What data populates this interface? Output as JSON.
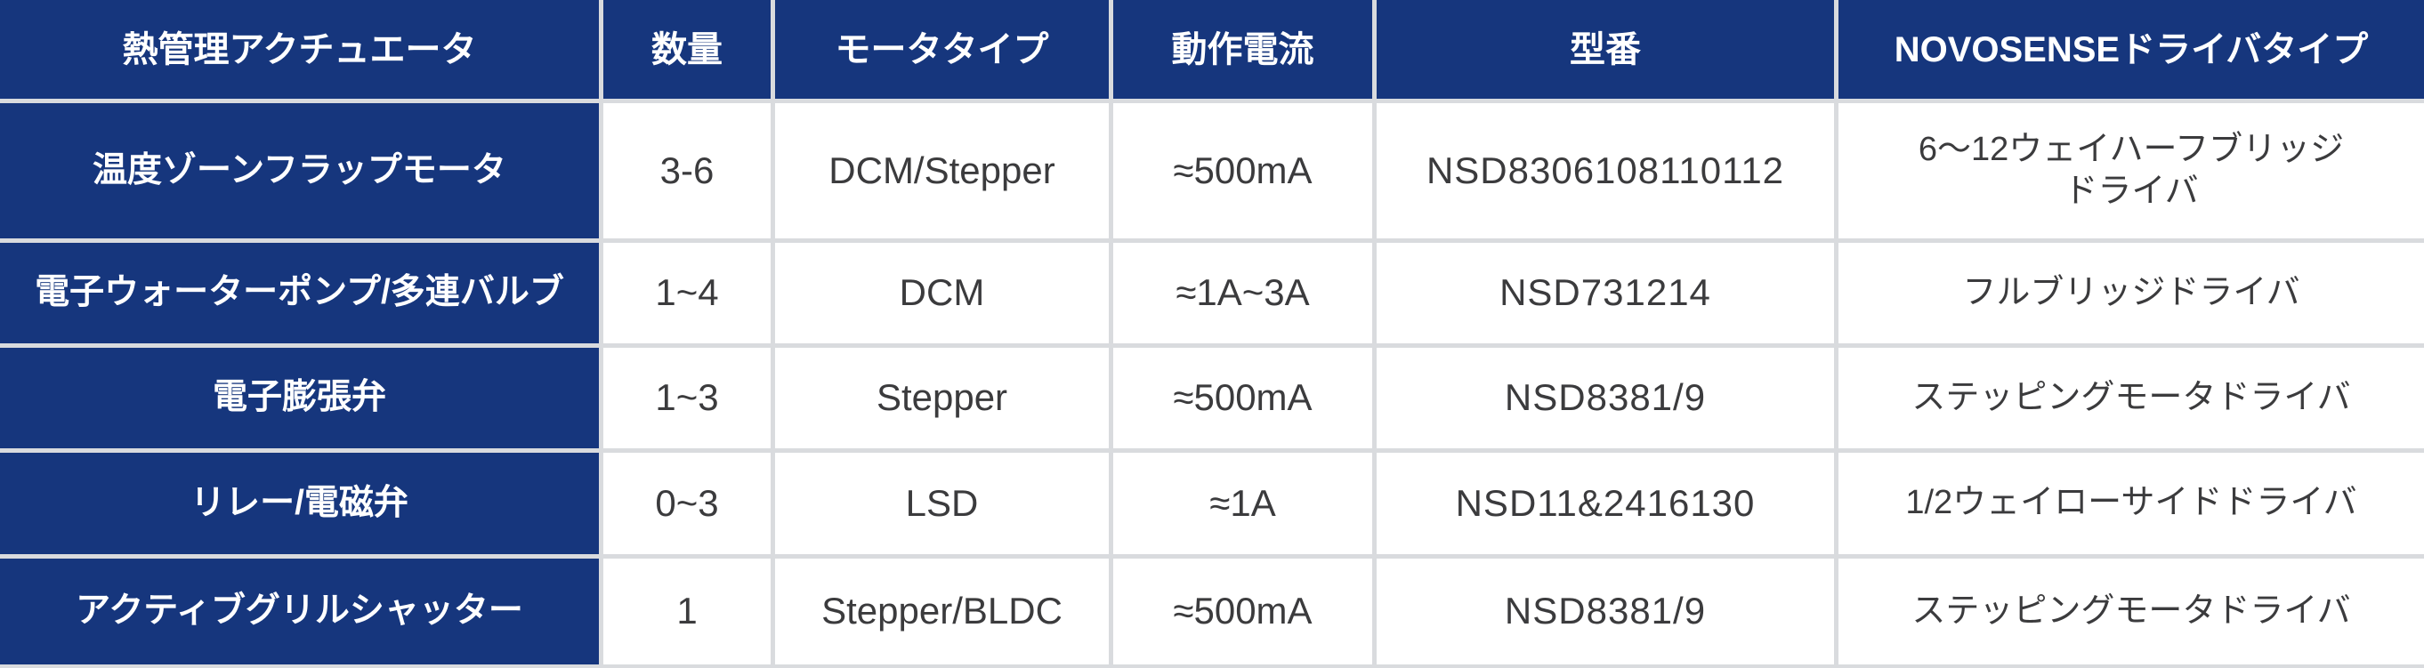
{
  "table": {
    "title_semantics": "thermal-management-actuator-spec-table",
    "colors": {
      "navy": "#16367d",
      "gridline": "#d9dbde",
      "body_text": "#3b3b3d",
      "header_text": "#ffffff"
    },
    "header": {
      "actuator": "熱管理アクチュエータ",
      "quantity": "数量",
      "motor_type": "モータタイプ",
      "operating_current": "動作電流",
      "part_number": "型番",
      "driver_type": "NOVOSENSEドライバタイプ"
    },
    "rows": [
      {
        "actuator": "温度ゾーンフラップモータ",
        "quantity": "3-6",
        "motor_type": "DCM/Stepper",
        "operating_current": "≈500mA",
        "part_number": "NSD8306108110112",
        "driver_type": "6～12ウェイハーフブリッジ\nドライバ"
      },
      {
        "actuator": "電子ウォーターポンプ/多連バルブ",
        "quantity": "1~4",
        "motor_type": "DCM",
        "operating_current": "≈1A~3A",
        "part_number": "NSD731214",
        "driver_type": "フルブリッジドライバ"
      },
      {
        "actuator": "電子膨張弁",
        "quantity": "1~3",
        "motor_type": "Stepper",
        "operating_current": "≈500mA",
        "part_number": "NSD8381/9",
        "driver_type": "ステッピングモータドライバ"
      },
      {
        "actuator": "リレー/電磁弁",
        "quantity": "0~3",
        "motor_type": "LSD",
        "operating_current": "≈1A",
        "part_number": "NSD11&2416130",
        "driver_type": "1/2ウェイローサイドドライバ"
      },
      {
        "actuator": "アクティブグリルシャッター",
        "quantity": "1",
        "motor_type": "Stepper/BLDC",
        "operating_current": "≈500mA",
        "part_number": "NSD8381/9",
        "driver_type": "ステッピングモータドライバ"
      }
    ]
  }
}
